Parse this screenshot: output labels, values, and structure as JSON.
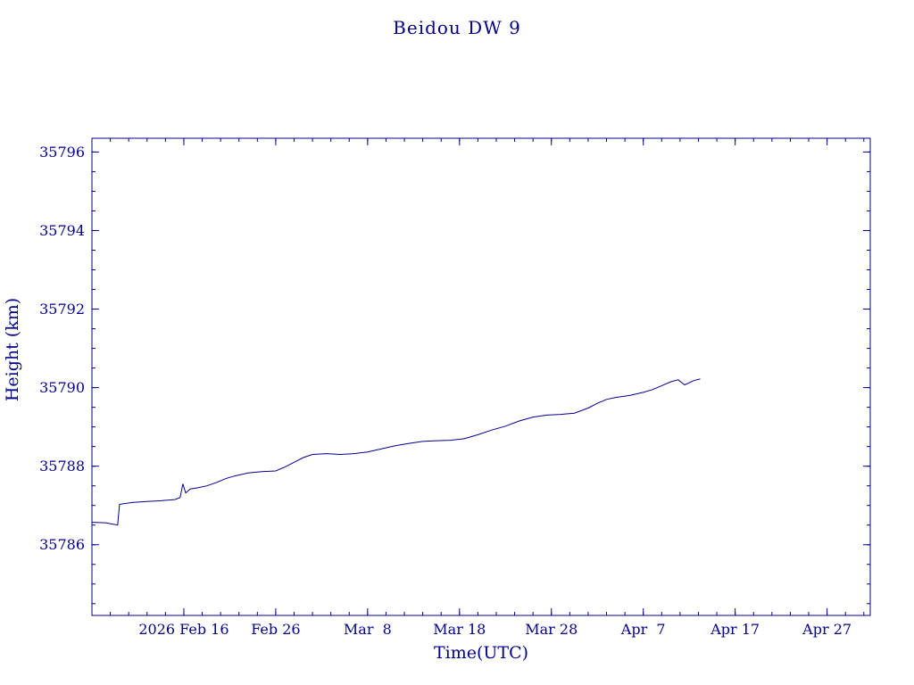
{
  "chart_data": {
    "type": "line",
    "title": "Beidou DW 9",
    "xlabel": "Time(UTC)",
    "ylabel": "Height (km)",
    "line_color": "#00008b",
    "axis_color": "#00008b",
    "grid": false,
    "legend": "none",
    "x_unit": "days (0 = 2026 Feb 6)",
    "xlim": [
      0,
      84.7
    ],
    "ylim": [
      35784.2,
      35796.35
    ],
    "x_minor_step": 2,
    "y_minor_step": 0.5,
    "x_ticks": [
      {
        "pos": 10,
        "label": "2026 Feb 16"
      },
      {
        "pos": 20,
        "label": "Feb 26"
      },
      {
        "pos": 30,
        "label": "Mar  8"
      },
      {
        "pos": 40,
        "label": "Mar 18"
      },
      {
        "pos": 50,
        "label": "Mar 28"
      },
      {
        "pos": 60,
        "label": "Apr  7"
      },
      {
        "pos": 70,
        "label": "Apr 17"
      },
      {
        "pos": 80,
        "label": "Apr 27"
      }
    ],
    "y_ticks": [
      {
        "pos": 35786,
        "label": "35786"
      },
      {
        "pos": 35788,
        "label": "35788"
      },
      {
        "pos": 35790,
        "label": "35790"
      },
      {
        "pos": 35792,
        "label": "35792"
      },
      {
        "pos": 35794,
        "label": "35794"
      },
      {
        "pos": 35796,
        "label": "35796"
      }
    ],
    "series": [
      {
        "name": "height",
        "points": [
          [
            0,
            35786.57
          ],
          [
            1.5,
            35786.56
          ],
          [
            2.8,
            35786.5
          ],
          [
            3.0,
            35787.03
          ],
          [
            4.5,
            35787.08
          ],
          [
            6,
            35787.1
          ],
          [
            7.5,
            35787.12
          ],
          [
            9,
            35787.15
          ],
          [
            9.6,
            35787.2
          ],
          [
            9.9,
            35787.55
          ],
          [
            10.2,
            35787.32
          ],
          [
            10.7,
            35787.42
          ],
          [
            11.5,
            35787.45
          ],
          [
            12.5,
            35787.5
          ],
          [
            13.5,
            35787.58
          ],
          [
            14.5,
            35787.68
          ],
          [
            15.5,
            35787.75
          ],
          [
            17,
            35787.83
          ],
          [
            18.5,
            35787.86
          ],
          [
            20,
            35787.88
          ],
          [
            21,
            35787.98
          ],
          [
            22,
            35788.1
          ],
          [
            23,
            35788.22
          ],
          [
            24,
            35788.3
          ],
          [
            25.5,
            35788.32
          ],
          [
            27,
            35788.3
          ],
          [
            28.5,
            35788.32
          ],
          [
            30,
            35788.36
          ],
          [
            31.5,
            35788.44
          ],
          [
            33,
            35788.52
          ],
          [
            34.5,
            35788.58
          ],
          [
            36,
            35788.63
          ],
          [
            37.5,
            35788.65
          ],
          [
            39,
            35788.66
          ],
          [
            40.5,
            35788.7
          ],
          [
            42,
            35788.8
          ],
          [
            43.5,
            35788.92
          ],
          [
            45,
            35789.02
          ],
          [
            46.5,
            35789.15
          ],
          [
            48,
            35789.25
          ],
          [
            49.5,
            35789.3
          ],
          [
            51,
            35789.32
          ],
          [
            52.5,
            35789.35
          ],
          [
            54,
            35789.48
          ],
          [
            55,
            35789.6
          ],
          [
            56,
            35789.7
          ],
          [
            57,
            35789.75
          ],
          [
            58.5,
            35789.8
          ],
          [
            60,
            35789.88
          ],
          [
            61,
            35789.95
          ],
          [
            62,
            35790.05
          ],
          [
            63,
            35790.15
          ],
          [
            63.8,
            35790.2
          ],
          [
            64.5,
            35790.07
          ],
          [
            65.5,
            35790.18
          ],
          [
            66.2,
            35790.22
          ]
        ]
      }
    ]
  }
}
